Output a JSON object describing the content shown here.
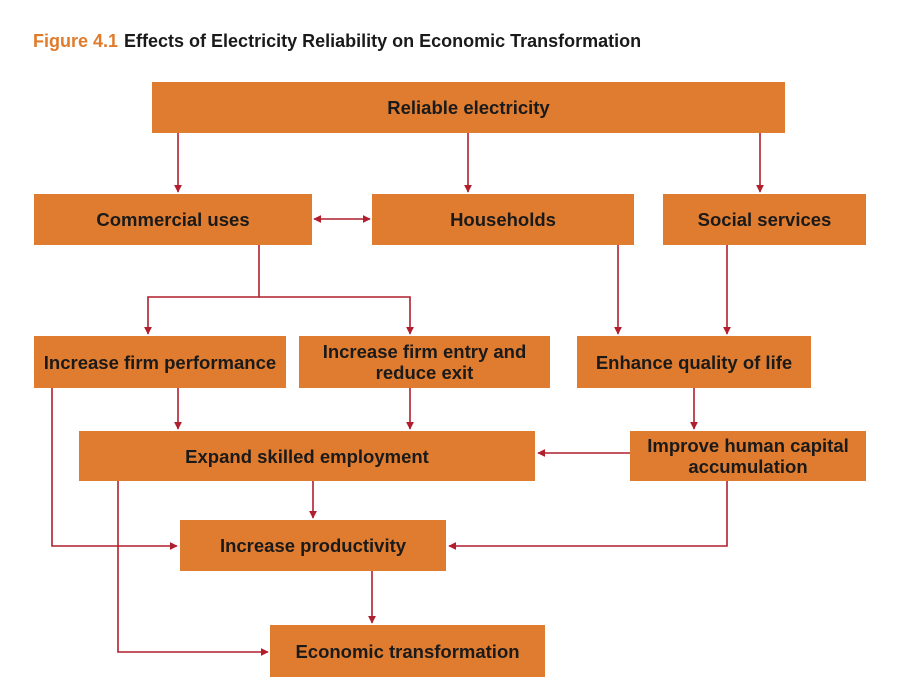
{
  "figure": {
    "number": "Figure 4.1",
    "title": "Effects of Electricity Reliability on Economic Transformation"
  },
  "nodes": {
    "reliable": "Reliable electricity",
    "commercial": "Commercial uses",
    "households": "Households",
    "social": "Social services",
    "firm_performance": "Increase firm performance",
    "firm_entry": "Increase firm entry and reduce exit",
    "quality_life": "Enhance quality of life",
    "skilled_employment": "Expand skilled employment",
    "human_capital": "Improve human capital accumulation",
    "productivity": "Increase productivity",
    "transformation": "Economic transformation"
  },
  "colors": {
    "box_fill": "#e07c2f",
    "arrow": "#b11f2e",
    "figure_number": "#e07b2b"
  },
  "edges": [
    {
      "from": "reliable",
      "to": "commercial"
    },
    {
      "from": "reliable",
      "to": "households"
    },
    {
      "from": "reliable",
      "to": "social"
    },
    {
      "from": "commercial",
      "to": "households",
      "bidirectional": true
    },
    {
      "from": "commercial",
      "to": "firm_performance"
    },
    {
      "from": "commercial",
      "to": "firm_entry"
    },
    {
      "from": "households",
      "to": "quality_life"
    },
    {
      "from": "social",
      "to": "quality_life"
    },
    {
      "from": "firm_performance",
      "to": "skilled_employment"
    },
    {
      "from": "firm_performance",
      "to": "productivity"
    },
    {
      "from": "firm_entry",
      "to": "skilled_employment"
    },
    {
      "from": "quality_life",
      "to": "human_capital"
    },
    {
      "from": "human_capital",
      "to": "skilled_employment"
    },
    {
      "from": "human_capital",
      "to": "productivity"
    },
    {
      "from": "skilled_employment",
      "to": "productivity"
    },
    {
      "from": "skilled_employment",
      "to": "transformation"
    },
    {
      "from": "productivity",
      "to": "transformation"
    }
  ]
}
